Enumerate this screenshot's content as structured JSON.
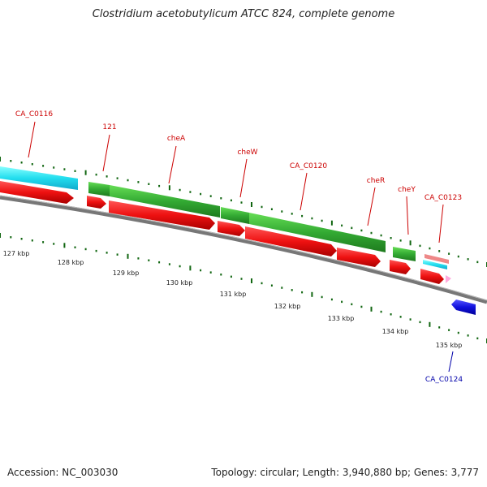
{
  "title": "Clostridium acetobutylicum ATCC 824, complete genome",
  "footer": {
    "accession": "Accession: NC_003030",
    "summary": "Topology: circular; Length: 3,940,880 bp; Genes: 3,777"
  },
  "ruler_labels": [
    "127 kbp",
    "128 kbp",
    "129 kbp",
    "130 kbp",
    "131 kbp",
    "132 kbp",
    "133 kbp",
    "134 kbp",
    "135 kbp"
  ],
  "gene_labels": {
    "ca_c0116": "CA_C0116",
    "n121": "121",
    "chea": "cheA",
    "chew": "cheW",
    "ca_c0120": "CA_C0120",
    "cher": "cheR",
    "chey": "cheY",
    "ca_c0123": "CA_C0123",
    "ca_c0124": "CA_C0124"
  },
  "colors": {
    "forward_label": "#cc0000",
    "reverse_label": "#0000aa",
    "cds": "#ee1111",
    "gene_green": "#33bb33",
    "gene_cyan": "#22ddee",
    "gene_blue": "#1111dd",
    "rrna_salmon": "#ee8888",
    "misc_pink": "#ffaadd",
    "backbone": "#888888",
    "tick": "#116611"
  }
}
